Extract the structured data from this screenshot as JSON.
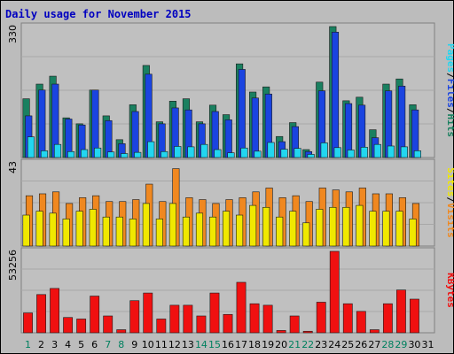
{
  "chart_data": {
    "type": "bar",
    "title": "Daily usage for November 2015",
    "categories": [
      "1",
      "2",
      "3",
      "4",
      "5",
      "6",
      "7",
      "8",
      "9",
      "10",
      "11",
      "12",
      "13",
      "14",
      "15",
      "16",
      "17",
      "18",
      "19",
      "20",
      "21",
      "22",
      "23",
      "24",
      "25",
      "26",
      "27",
      "28",
      "29",
      "30",
      "31"
    ],
    "weekend_days": [
      1,
      7,
      8,
      14,
      15,
      21,
      22,
      28,
      29
    ],
    "panels": [
      {
        "id": "hits",
        "ymax_label": "330",
        "ymax": 330,
        "axis_label_parts": [
          "Pages",
          "Files",
          "Hits"
        ],
        "series": [
          {
            "name": "Hits",
            "color": "#1a8060",
            "values": [
              148,
              185,
              205,
              100,
              85,
              170,
              105,
              45,
              133,
              232,
              90,
              142,
              148,
              90,
              132,
              108,
              236,
              165,
              178,
              53,
              88,
              20,
              190,
              330,
              143,
              152,
              70,
              185,
              198,
              133
            ]
          },
          {
            "name": "Files",
            "color": "#1a44e0",
            "values": [
              105,
              170,
              185,
              97,
              82,
              170,
              93,
              35,
              116,
              210,
              85,
              125,
              120,
              85,
              116,
              95,
              222,
              150,
              160,
              40,
              78,
              15,
              168,
              316,
              136,
              132,
              50,
              168,
              180,
              120
            ]
          },
          {
            "name": "Pages",
            "color": "#22d6f0",
            "values": [
              52,
              17,
              33,
              15,
              20,
              24,
              14,
              10,
              13,
              40,
              15,
              28,
              27,
              33,
              20,
              12,
              24,
              16,
              38,
              21,
              23,
              8,
              37,
              25,
              19,
              26,
              33,
              29,
              27,
              17
            ]
          }
        ]
      },
      {
        "id": "visits",
        "ymax_label": "43",
        "ymax": 43,
        "axis_label_parts": [
          "Sites",
          "Visits"
        ],
        "series": [
          {
            "name": "Visits",
            "color": "#f08820",
            "values": [
              26,
              27,
              28,
              22,
              25,
              26,
              23,
              23,
              24,
              32,
              23,
              40,
              25,
              24,
              22,
              24,
              25,
              28,
              30,
              25,
              26,
              23,
              30,
              29,
              28,
              30,
              27,
              27,
              25,
              22
            ]
          },
          {
            "name": "Sites",
            "color": "#f0e800",
            "values": [
              16,
              18,
              17,
              14,
              18,
              19,
              15,
              15,
              14,
              22,
              14,
              22,
              15,
              17,
              15,
              18,
              16,
              21,
              20,
              15,
              18,
              12,
              19,
              20,
              20,
              21,
              18,
              18,
              18,
              14
            ]
          }
        ]
      },
      {
        "id": "kbytes",
        "ymax_label": "53256",
        "ymax": 53256,
        "axis_label_parts": [
          "KBytes"
        ],
        "series": [
          {
            "name": "KBytes",
            "color": "#f01010",
            "values": [
              13000,
              25000,
              29000,
              10000,
              9000,
              24000,
              11000,
              2000,
              21000,
              26000,
              9000,
              18000,
              18000,
              11000,
              26000,
              12000,
              33000,
              19000,
              18000,
              1500,
              11000,
              1000,
              20000,
              53256,
              19000,
              14000,
              2000,
              19000,
              28000,
              22000
            ]
          }
        ]
      }
    ],
    "colors": {
      "background": "#bcbcbc",
      "panel": "#c0c0c0",
      "grid": "#a8a8a8",
      "title": "#0000c0",
      "weekday_label": "#000000",
      "weekend_label": "#00805f",
      "label_separator": "#000000"
    }
  }
}
